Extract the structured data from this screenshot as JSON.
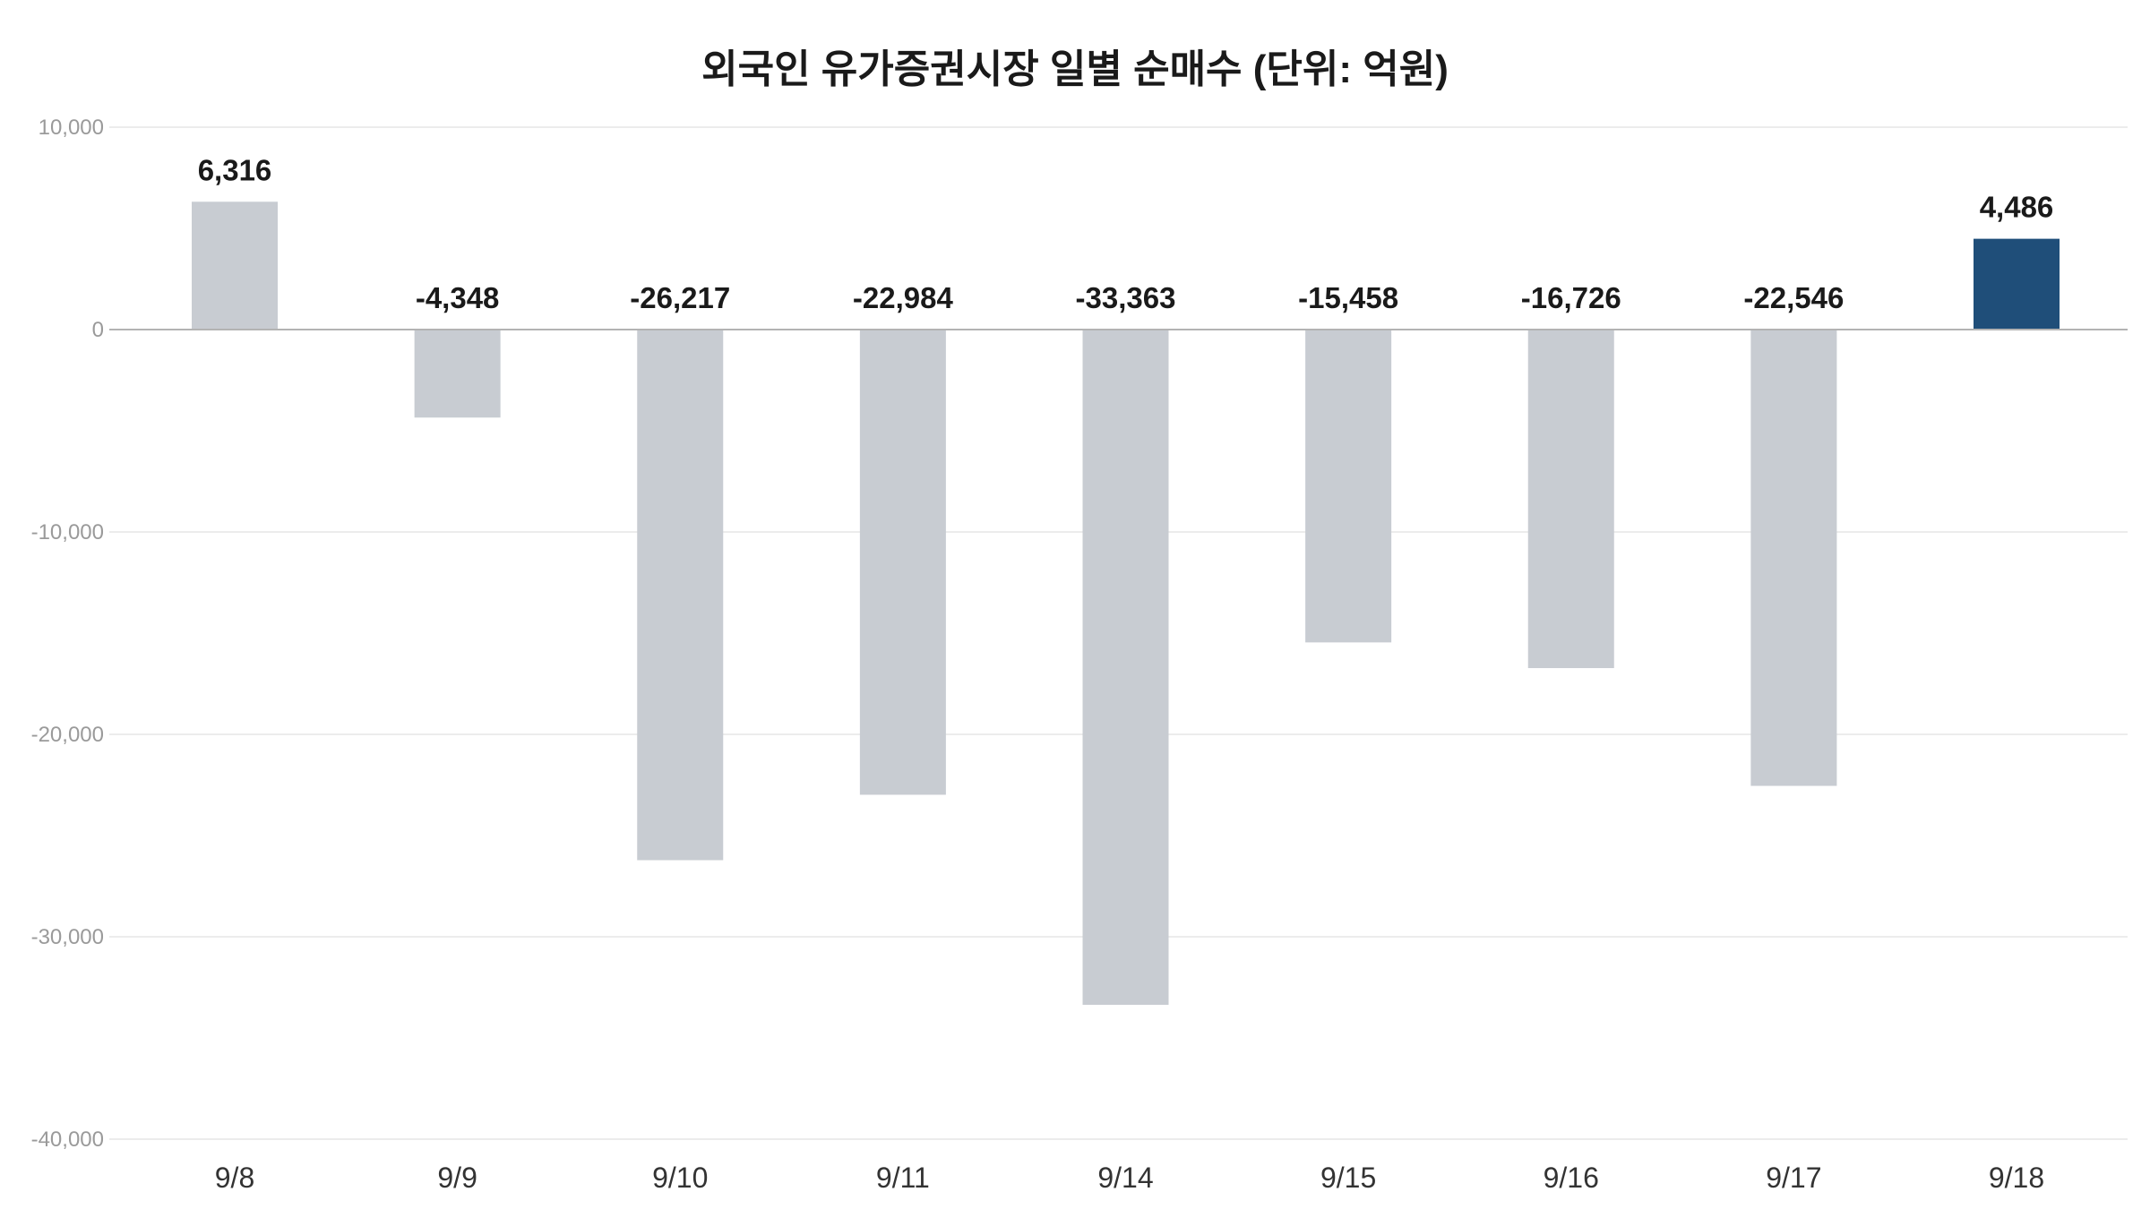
{
  "chart_data": {
    "type": "bar",
    "title": "외국인 유가증권시장 일별 순매수 (단위: 억원)",
    "xlabel": "",
    "ylabel": "",
    "categories": [
      "9/8",
      "9/9",
      "9/10",
      "9/11",
      "9/14",
      "9/15",
      "9/16",
      "9/17",
      "9/18"
    ],
    "values": [
      6316,
      -4348,
      -26217,
      -22984,
      -33363,
      -15458,
      -16726,
      -22546,
      4486
    ],
    "value_labels": [
      "6,316",
      "-4,348",
      "-26,217",
      "-22,984",
      "-33,363",
      "-15,458",
      "-16,726",
      "-22,546",
      "4,486"
    ],
    "ylim": [
      -40000,
      10000
    ],
    "yticks": [
      10000,
      0,
      -10000,
      -20000,
      -30000,
      -40000
    ],
    "ytick_labels": [
      "10,000",
      "0",
      "-10,000",
      "-20,000",
      "-30,000",
      "-40,000"
    ],
    "grid": true,
    "legend": "none",
    "highlight_index": 8,
    "colors": {
      "bar": "#c8ccd2",
      "highlight": "#1f4e79"
    }
  }
}
